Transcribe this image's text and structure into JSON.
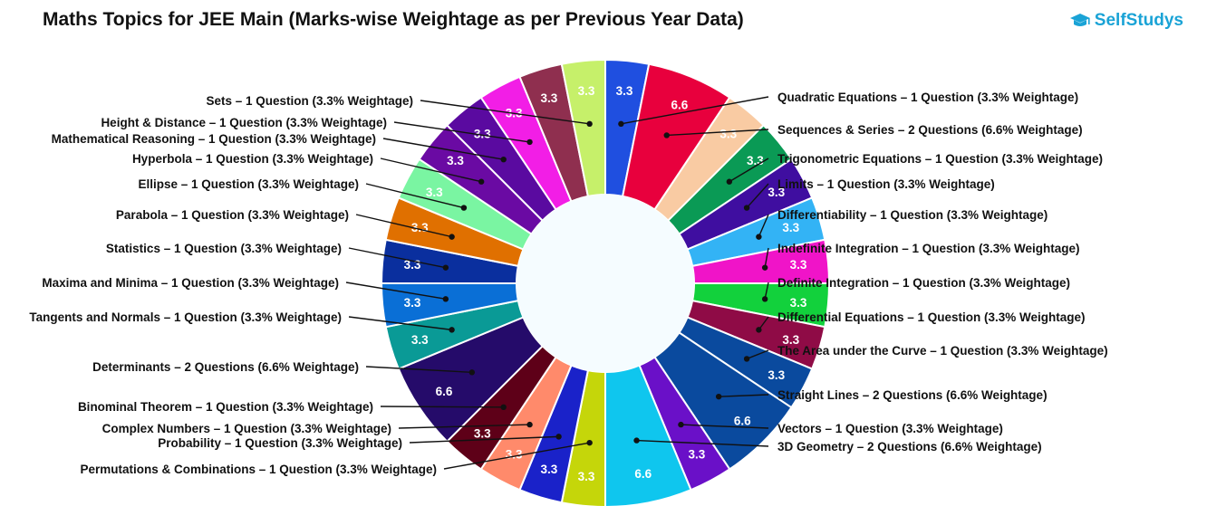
{
  "header": {
    "title": "Maths Topics for JEE Main (Marks-wise Weightage as per Previous Year Data)",
    "brand": "SelfStudys"
  },
  "chart_data": {
    "type": "pie",
    "title": "Maths Topics for JEE Main (Marks-wise Weightage as per Previous Year Data)",
    "donut": true,
    "slices": [
      {
        "label": "Quadratic Equations – 1 Question (3.3% Weightage)",
        "value": 3.3,
        "display": "3.3",
        "color": "#1f4fe0"
      },
      {
        "label": "Sequences & Series – 2 Questions (6.6% Weightage)",
        "value": 6.6,
        "display": "6.6",
        "color": "#e8003d"
      },
      {
        "label": "",
        "value": 3.3,
        "display": "3.3",
        "color": "#f9cba3"
      },
      {
        "label": "Trigonometric Equations – 1 Question (3.3% Weightage)",
        "value": 3.3,
        "display": "3.3",
        "color": "#0a9a55"
      },
      {
        "label": "Limits – 1 Question (3.3% Weightage)",
        "value": 3.3,
        "display": "3.3",
        "color": "#3f0ea0"
      },
      {
        "label": "Differentiability – 1 Question (3.3% Weightage)",
        "value": 3.3,
        "display": "3.3",
        "color": "#33b3f5"
      },
      {
        "label": "Indefinite Integration – 1 Question (3.3% Weightage)",
        "value": 3.3,
        "display": "3.3",
        "color": "#f014c8"
      },
      {
        "label": "Definite Integration – 1 Question (3.3% Weightage)",
        "value": 3.3,
        "display": "3.3",
        "color": "#12d13c"
      },
      {
        "label": "Differential Equations – 1 Question (3.3% Weightage)",
        "value": 3.3,
        "display": "3.3",
        "color": "#8f0b46"
      },
      {
        "label": "The Area under the Curve – 1 Question (3.3% Weightage)",
        "value": 3.3,
        "display": "3.3",
        "color": "#0a4a9e"
      },
      {
        "label": "Straight Lines – 2 Questions (6.6% Weightage)",
        "value": 6.6,
        "display": "6.6",
        "color": "#0a4a9e"
      },
      {
        "label": "Vectors – 1 Question (3.3% Weightage)",
        "value": 3.3,
        "display": "3.3",
        "color": "#6a10c8"
      },
      {
        "label": "3D Geometry – 2 Questions (6.6% Weightage)",
        "value": 6.6,
        "display": "6.6",
        "color": "#0fc6ee"
      },
      {
        "label": "Permutations & Combinations – 1 Question (3.3% Weightage)",
        "value": 3.3,
        "display": "3.3",
        "color": "#c5d60a"
      },
      {
        "label": "Probability – 1 Question (3.3% Weightage)",
        "value": 3.3,
        "display": "3.3",
        "color": "#1a22c9"
      },
      {
        "label": "Complex Numbers – 1 Question (3.3% Weightage)",
        "value": 3.3,
        "display": "3.3",
        "color": "#ff8a6b"
      },
      {
        "label": "Binominal Theorem – 1 Question (3.3% Weightage)",
        "value": 3.3,
        "display": "3.3",
        "color": "#5e0018"
      },
      {
        "label": "Determinants – 2 Questions (6.6% Weightage)",
        "value": 6.6,
        "display": "6.6",
        "color": "#250b6a"
      },
      {
        "label": "Tangents and Normals – 1 Question (3.3% Weightage)",
        "value": 3.3,
        "display": "3.3",
        "color": "#0a9a96"
      },
      {
        "label": "Maxima and Minima – 1 Question (3.3% Weightage)",
        "value": 3.3,
        "display": "3.3",
        "color": "#0a6fd6"
      },
      {
        "label": "Statistics – 1 Question (3.3% Weightage)",
        "value": 3.3,
        "display": "3.3",
        "color": "#0a2f9e"
      },
      {
        "label": "Parabola – 1 Question (3.3% Weightage)",
        "value": 3.3,
        "display": "3.3",
        "color": "#e07000"
      },
      {
        "label": "Ellipse – 1 Question (3.3% Weightage)",
        "value": 3.3,
        "display": "3.3",
        "color": "#7af5a2"
      },
      {
        "label": "Hyperbola – 1 Question (3.3% Weightage)",
        "value": 3.3,
        "display": "3.3",
        "color": "#6a0aa3"
      },
      {
        "label": "Mathematical Reasoning – 1 Question (3.3% Weightage)",
        "value": 3.3,
        "display": "3.3",
        "color": "#5a0aa0"
      },
      {
        "label": "Height & Distance – 1 Question (3.3% Weightage)",
        "value": 3.3,
        "display": "3.3",
        "color": "#f21ee6"
      },
      {
        "label": "",
        "value": 3.3,
        "display": "3.3",
        "color": "#8f2f4f"
      },
      {
        "label": "Sets – 1 Question (3.3% Weightage)",
        "value": 3.3,
        "display": "3.3",
        "color": "#c6f06a"
      }
    ]
  }
}
